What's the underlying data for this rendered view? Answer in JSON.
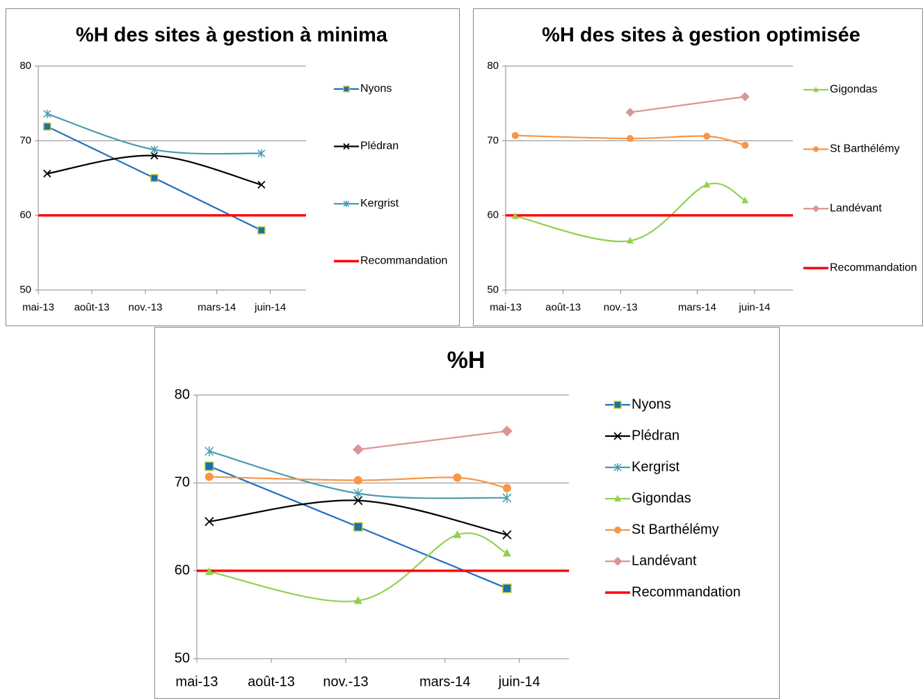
{
  "chart_data": [
    {
      "type": "line",
      "title": "%H des sites à gestion à minima",
      "xlim": [
        "2013-05",
        "2014-08"
      ],
      "xticks": [
        {
          "value": "2013-05",
          "label": "mai-13"
        },
        {
          "value": "2013-08",
          "label": "août-13"
        },
        {
          "value": "2013-11",
          "label": "nov.-13"
        },
        {
          "value": "2014-03",
          "label": "mars-14"
        },
        {
          "value": "2014-06",
          "label": "juin-14"
        }
      ],
      "ylim": [
        50,
        80
      ],
      "yticks": [
        50,
        60,
        70,
        80
      ],
      "grid": true,
      "series": [
        {
          "name": "Nyons",
          "color": "#1f6fbf",
          "marker": "square",
          "x": [
            "2013-05",
            "2013-11",
            "2014-05"
          ],
          "values": [
            71.9,
            65,
            58
          ]
        },
        {
          "name": "Plédran",
          "color": "#000000",
          "marker": "x",
          "x": [
            "2013-05",
            "2013-11",
            "2014-05"
          ],
          "values": [
            65.6,
            68,
            64.1
          ]
        },
        {
          "name": "Kergrist",
          "color": "#4a9bb0",
          "marker": "star",
          "x": [
            "2013-05",
            "2013-11",
            "2014-05"
          ],
          "values": [
            73.6,
            68.8,
            68.3
          ]
        },
        {
          "name": "Recommandation",
          "color": "#ff0000",
          "marker": "none",
          "x": [
            "2013-04",
            "2014-08"
          ],
          "values": [
            60,
            60
          ]
        }
      ]
    },
    {
      "type": "line",
      "title": "%H des sites à gestion optimisée",
      "xlim": [
        "2013-05",
        "2014-08"
      ],
      "xticks": [
        {
          "value": "2013-05",
          "label": "mai-13"
        },
        {
          "value": "2013-08",
          "label": "août-13"
        },
        {
          "value": "2013-11",
          "label": "nov.-13"
        },
        {
          "value": "2014-03",
          "label": "mars-14"
        },
        {
          "value": "2014-06",
          "label": "juin-14"
        }
      ],
      "ylim": [
        50,
        80
      ],
      "yticks": [
        50,
        60,
        70,
        80
      ],
      "grid": true,
      "series": [
        {
          "name": "Gigondas",
          "color": "#92d050",
          "marker": "triangle",
          "x": [
            "2013-05",
            "2013-11",
            "2014-03",
            "2014-05"
          ],
          "values": [
            59.9,
            56.6,
            64.1,
            62
          ]
        },
        {
          "name": "St Barthélémy",
          "color": "#f79646",
          "marker": "circle",
          "x": [
            "2013-05",
            "2013-11",
            "2014-03",
            "2014-05"
          ],
          "values": [
            70.7,
            70.3,
            70.6,
            69.4
          ]
        },
        {
          "name": "Landévant",
          "color": "#d99694",
          "marker": "diamond",
          "x": [
            "2013-11",
            "2014-05"
          ],
          "values": [
            73.8,
            75.9
          ]
        },
        {
          "name": "Recommandation",
          "color": "#ff0000",
          "marker": "none",
          "x": [
            "2013-04",
            "2014-08"
          ],
          "values": [
            60,
            60
          ]
        }
      ]
    },
    {
      "type": "line",
      "title": "%H",
      "xlim": [
        "2013-05",
        "2014-08"
      ],
      "xticks": [
        {
          "value": "2013-05",
          "label": "mai-13"
        },
        {
          "value": "2013-08",
          "label": "août-13"
        },
        {
          "value": "2013-11",
          "label": "nov.-13"
        },
        {
          "value": "2014-03",
          "label": "mars-14"
        },
        {
          "value": "2014-06",
          "label": "juin-14"
        }
      ],
      "ylim": [
        50,
        80
      ],
      "yticks": [
        50,
        60,
        70,
        80
      ],
      "grid": true,
      "series": [
        {
          "name": "Nyons",
          "color": "#1f6fbf",
          "marker": "square",
          "x": [
            "2013-05",
            "2013-11",
            "2014-05"
          ],
          "values": [
            71.9,
            65,
            58
          ]
        },
        {
          "name": "Plédran",
          "color": "#000000",
          "marker": "x",
          "x": [
            "2013-05",
            "2013-11",
            "2014-05"
          ],
          "values": [
            65.6,
            68,
            64.1
          ]
        },
        {
          "name": "Kergrist",
          "color": "#4a9bb0",
          "marker": "star",
          "x": [
            "2013-05",
            "2013-11",
            "2014-05"
          ],
          "values": [
            73.6,
            68.8,
            68.3
          ]
        },
        {
          "name": "Gigondas",
          "color": "#92d050",
          "marker": "triangle",
          "x": [
            "2013-05",
            "2013-11",
            "2014-03",
            "2014-05"
          ],
          "values": [
            59.9,
            56.6,
            64.1,
            62
          ]
        },
        {
          "name": "St Barthélémy",
          "color": "#f79646",
          "marker": "circle",
          "x": [
            "2013-05",
            "2013-11",
            "2014-03",
            "2014-05"
          ],
          "values": [
            70.7,
            70.3,
            70.6,
            69.4
          ]
        },
        {
          "name": "Landévant",
          "color": "#d99694",
          "marker": "diamond",
          "x": [
            "2013-11",
            "2014-05"
          ],
          "values": [
            73.8,
            75.9
          ]
        },
        {
          "name": "Recommandation",
          "color": "#ff0000",
          "marker": "none",
          "x": [
            "2013-04",
            "2014-08"
          ],
          "values": [
            60,
            60
          ]
        }
      ]
    }
  ]
}
